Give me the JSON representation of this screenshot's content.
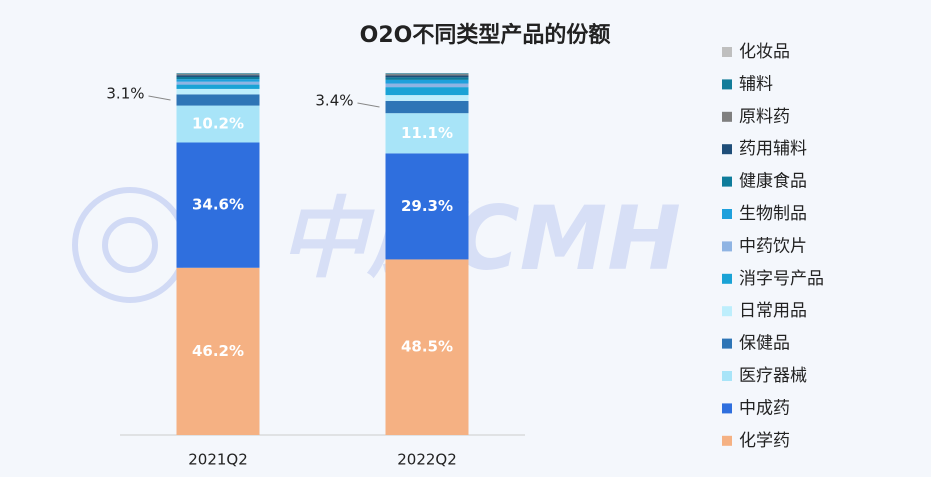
{
  "chart_data": {
    "type": "stacked_bar",
    "title": "O2O不同类型产品的份额",
    "watermark": "中康CMH",
    "categories": [
      "2021Q2",
      "2022Q2"
    ],
    "ylim": [
      0,
      100
    ],
    "series": [
      {
        "name": "化学药",
        "color": "#f5b183",
        "values": [
          46.2,
          48.5
        ],
        "value_labels": [
          "46.2%",
          "48.5%"
        ]
      },
      {
        "name": "中成药",
        "color": "#2f6fde",
        "values": [
          34.6,
          29.3
        ],
        "value_labels": [
          "34.6%",
          "29.3%"
        ]
      },
      {
        "name": "医疗器械",
        "color": "#a8e4f8",
        "values": [
          10.2,
          11.1
        ],
        "value_labels": [
          "10.2%",
          "11.1%"
        ]
      },
      {
        "name": "保健品",
        "color": "#2e75b6",
        "values": [
          3.1,
          3.4
        ],
        "value_labels": [
          "3.1%",
          "3.4%"
        ]
      },
      {
        "name": "日常用品",
        "color": "#bdeefc",
        "values": [
          1.5,
          1.6
        ],
        "value_labels": [
          null,
          null
        ]
      },
      {
        "name": "消字号产品",
        "color": "#1aa3d6",
        "values": [
          1.2,
          2.2
        ],
        "value_labels": [
          null,
          null
        ]
      },
      {
        "name": "中药饮片",
        "color": "#8fb4e3",
        "values": [
          0.8,
          1.0
        ],
        "value_labels": [
          null,
          null
        ]
      },
      {
        "name": "生物制品",
        "color": "#1ea0dc",
        "values": [
          0.7,
          1.0
        ],
        "value_labels": [
          null,
          null
        ]
      },
      {
        "name": "健康食品",
        "color": "#0e7c9b",
        "values": [
          0.6,
          0.7
        ],
        "value_labels": [
          null,
          null
        ]
      },
      {
        "name": "药用辅料",
        "color": "#1f4e79",
        "values": [
          0.5,
          0.5
        ],
        "value_labels": [
          null,
          null
        ]
      },
      {
        "name": "原料药",
        "color": "#7f7f7f",
        "values": [
          0.3,
          0.4
        ],
        "value_labels": [
          null,
          null
        ]
      },
      {
        "name": "辅料",
        "color": "#127c99",
        "values": [
          0.2,
          0.2
        ],
        "value_labels": [
          null,
          null
        ]
      },
      {
        "name": "化妆品",
        "color": "#bfbfbf",
        "values": [
          0.1,
          0.1
        ],
        "value_labels": [
          null,
          null
        ]
      }
    ]
  }
}
